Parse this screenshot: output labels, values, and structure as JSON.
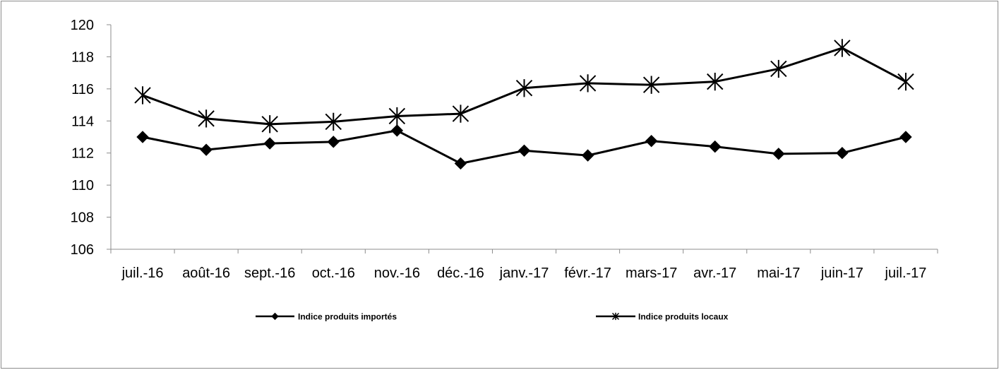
{
  "chart_data": {
    "type": "line",
    "categories": [
      "juil.-16",
      "août-16",
      "sept.-16",
      "oct.-16",
      "nov.-16",
      "déc.-16",
      "janv.-17",
      "févr.-17",
      "mars-17",
      "avr.-17",
      "mai-17",
      "juin-17",
      "juil.-17"
    ],
    "series": [
      {
        "name": "Indice produits importés",
        "marker": "diamond",
        "color": "#000000",
        "values": [
          113.0,
          112.2,
          112.6,
          112.7,
          113.4,
          111.35,
          112.15,
          111.85,
          112.75,
          112.4,
          111.95,
          112.0,
          113.0
        ]
      },
      {
        "name": "Indice produits locaux",
        "marker": "asterisk",
        "color": "#000000",
        "values": [
          115.6,
          114.15,
          113.8,
          113.95,
          114.3,
          114.45,
          116.05,
          116.35,
          116.25,
          116.45,
          117.25,
          118.55,
          116.45
        ]
      }
    ],
    "yticks": [
      "106",
      "108",
      "110",
      "112",
      "114",
      "116",
      "118",
      "120"
    ],
    "ylim": [
      106,
      120
    ],
    "grid": false,
    "legend_position": "bottom"
  }
}
